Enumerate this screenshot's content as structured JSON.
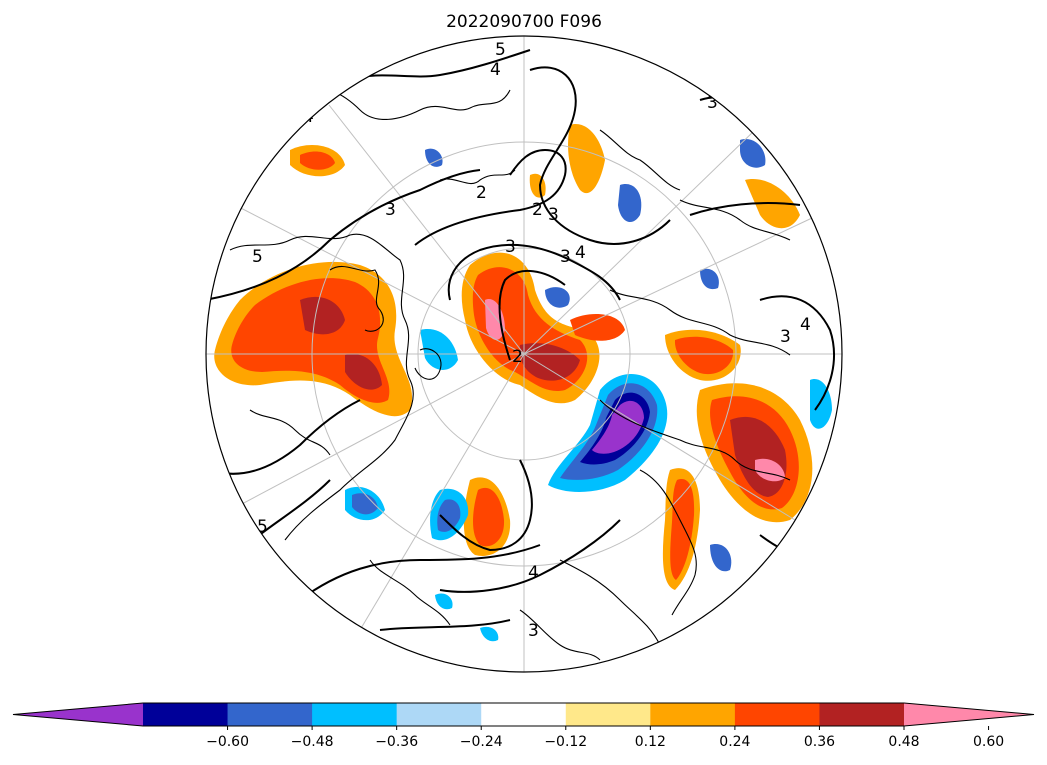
{
  "title": "2022090700 F096",
  "colorbar": {
    "colors": [
      "#9933cc",
      "#000099",
      "#3366cc",
      "#00bfff",
      "#add8f6",
      "#ffffff",
      "#ffe88a",
      "#ffa500",
      "#ff4500",
      "#b22222",
      "#ff88aa"
    ],
    "ticks": [
      "−0.60",
      "−0.48",
      "−0.36",
      "−0.24",
      "−0.12",
      "0.12",
      "0.24",
      "0.36",
      "0.48",
      "0.60"
    ]
  },
  "contour_labels": [
    "5",
    "4",
    "3",
    "2",
    "2",
    "3",
    "3",
    "4",
    "3",
    "2",
    "3",
    "4",
    "3",
    "5",
    "5",
    "3",
    "4",
    "4",
    "3"
  ]
}
